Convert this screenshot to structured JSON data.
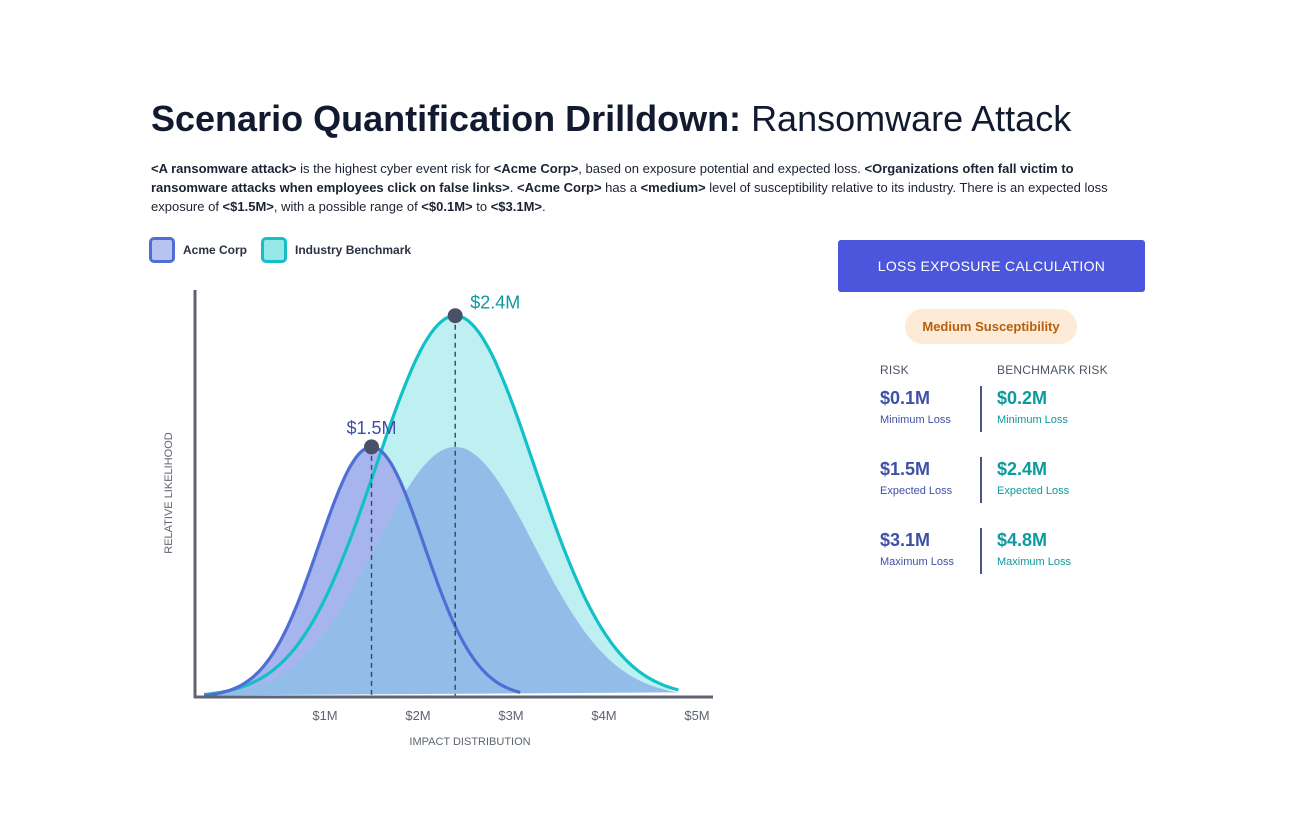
{
  "title": {
    "strong": "Scenario Quantification Drilldown:",
    "light": "Ransomware Attack"
  },
  "description": {
    "scenario": "<A ransomware attack>",
    "t1": " is the highest cyber event risk for ",
    "company": "<Acme Corp>",
    "t2": ", based on exposure potential and expected loss. ",
    "insight": "<Organizations often fall victim to ransomware attacks when employees click on false links>",
    "t3": ". ",
    "company2": "<Acme Corp>",
    "t4": " has a ",
    "level": "<medium>",
    "t5": " level of susceptibility relative to its industry. There is an expected loss exposure of ",
    "expected": "<$1.5M>",
    "t6": ", with a possible range of ",
    "min": "<$0.1M>",
    "t7": " to ",
    "max": "<$3.1M>",
    "t8": "."
  },
  "legend": [
    {
      "label": "Acme Corp",
      "fill": "#b7c3f0",
      "stroke": "#4f6fd6"
    },
    {
      "label": "Industry Benchmark",
      "fill": "#97e6e8",
      "stroke": "#12c0c8"
    }
  ],
  "chart_data": {
    "type": "area",
    "xlabel": "IMPACT DISTRIBUTION",
    "ylabel": "RELATIVE LIKELIHOOD",
    "x_ticks": [
      1,
      2,
      3,
      4,
      5
    ],
    "x_tick_labels": [
      "$1M",
      "$2M",
      "$3M",
      "$4M",
      "$5M"
    ],
    "xlim": [
      -0.4,
      5.0
    ],
    "ylim": [
      0,
      1.0
    ],
    "series": [
      {
        "name": "Industry Benchmark",
        "peak_x": 2.4,
        "peak_y": 0.93,
        "range": [
          -0.3,
          4.8
        ],
        "peak_label": "$2.4M",
        "color": "#12c0c8",
        "fill": "#bff0f1"
      },
      {
        "name": "Acme Corp",
        "peak_x": 1.5,
        "peak_y": 0.61,
        "range": [
          -0.3,
          3.1
        ],
        "peak_label": "$1.5M",
        "color": "#4f6fd6",
        "fill": "#a6b5ee"
      }
    ]
  },
  "panel": {
    "button_label": "LOSS EXPOSURE CALCULATION",
    "badge": "Medium Susceptibility",
    "risk_header": "RISK",
    "bench_header": "BENCHMARK RISK",
    "rows": [
      {
        "risk_value": "$0.1M",
        "risk_label": "Minimum Loss",
        "bench_value": "$0.2M",
        "bench_label": "Minimum Loss"
      },
      {
        "risk_value": "$1.5M",
        "risk_label": "Expected Loss",
        "bench_value": "$2.4M",
        "bench_label": "Expected Loss"
      },
      {
        "risk_value": "$3.1M",
        "risk_label": "Maximum Loss",
        "bench_value": "$4.8M",
        "bench_label": "Maximum Loss"
      }
    ]
  },
  "colors": {
    "accent": "#4b56dc",
    "risk_text": "#3e50a8",
    "bench_text": "#0d9a9e",
    "axis": "#5d6470",
    "marker": "#4a5068"
  }
}
